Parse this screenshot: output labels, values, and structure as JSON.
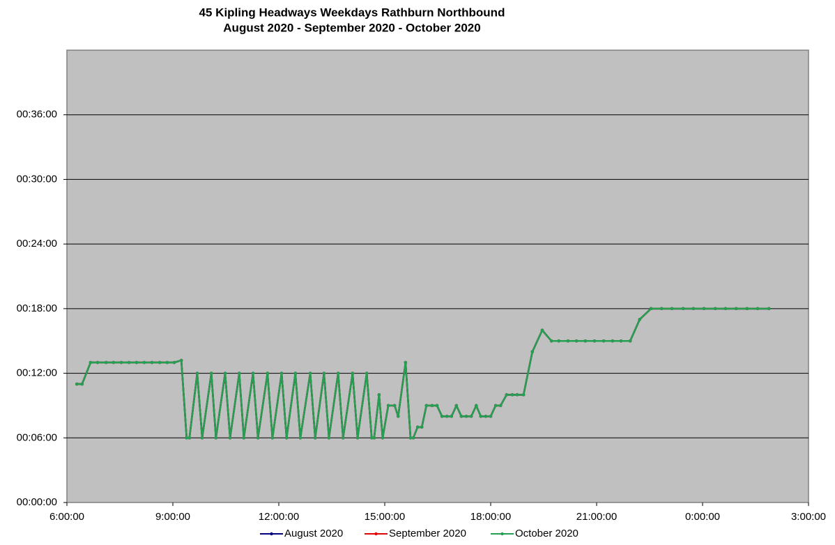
{
  "chart_data": {
    "type": "line",
    "title": "45 Kipling Headways Weekdays Rathburn Northbound",
    "subtitle": "August 2020 - September 2020 - October 2020",
    "x": [
      6.28,
      6.43,
      6.67,
      6.87,
      7.11,
      7.32,
      7.54,
      7.76,
      7.97,
      8.19,
      8.41,
      8.63,
      8.84,
      9.04,
      9.24,
      9.39,
      9.47,
      9.69,
      9.83,
      10.09,
      10.22,
      10.48,
      10.62,
      10.88,
      11.01,
      11.27,
      11.41,
      11.68,
      11.82,
      12.08,
      12.22,
      12.47,
      12.61,
      12.89,
      13.03,
      13.28,
      13.42,
      13.68,
      13.82,
      14.09,
      14.23,
      14.49,
      14.63,
      14.7,
      14.84,
      14.94,
      15.1,
      15.28,
      15.38,
      15.59,
      15.73,
      15.81,
      15.93,
      16.05,
      16.18,
      16.34,
      16.48,
      16.62,
      16.76,
      16.89,
      17.03,
      17.17,
      17.31,
      17.45,
      17.59,
      17.72,
      17.86,
      18.0,
      18.14,
      18.28,
      18.45,
      18.61,
      18.75,
      18.93,
      19.18,
      19.46,
      19.72,
      19.93,
      20.19,
      20.43,
      20.68,
      20.94,
      21.2,
      21.45,
      21.69,
      21.95,
      22.22,
      22.54,
      22.84,
      23.13,
      23.45,
      23.74,
      24.04,
      24.36,
      24.65,
      24.95,
      25.26,
      25.56,
      25.88
    ],
    "series": [
      {
        "name": "August 2020",
        "color": "#000080",
        "values": [
          11,
          11,
          13,
          13,
          13,
          13,
          13,
          13,
          13,
          13,
          13,
          13,
          13,
          13,
          13.2,
          6,
          6,
          12,
          6,
          12,
          6,
          12,
          6,
          12,
          6,
          12,
          6,
          12,
          6,
          12,
          6,
          12,
          6,
          12,
          6,
          12,
          6,
          12,
          6,
          12,
          6,
          12,
          6,
          6,
          10,
          6,
          9,
          9,
          8,
          13,
          6,
          6,
          7,
          7,
          9,
          9,
          9,
          8,
          8,
          8,
          9,
          8,
          8,
          8,
          9,
          8,
          8,
          8,
          9,
          9,
          10,
          10,
          10,
          10,
          14,
          16,
          15,
          15,
          15,
          15,
          15,
          15,
          15,
          15,
          15,
          15,
          17,
          18,
          18,
          18,
          18,
          18,
          18,
          18,
          18,
          18,
          18,
          18,
          18
        ]
      },
      {
        "name": "September 2020",
        "color": "#e00000",
        "values": [
          11,
          11,
          13,
          13,
          13,
          13,
          13,
          13,
          13,
          13,
          13,
          13,
          13,
          13,
          13.2,
          6,
          6,
          12,
          6,
          12,
          6,
          12,
          6,
          12,
          6,
          12,
          6,
          12,
          6,
          12,
          6,
          12,
          6,
          12,
          6,
          12,
          6,
          12,
          6,
          12,
          6,
          12,
          6,
          6,
          10,
          6,
          9,
          9,
          8,
          13,
          6,
          6,
          7,
          7,
          9,
          9,
          9,
          8,
          8,
          8,
          9,
          8,
          8,
          8,
          9,
          8,
          8,
          8,
          9,
          9,
          10,
          10,
          10,
          10,
          14,
          16,
          15,
          15,
          15,
          15,
          15,
          15,
          15,
          15,
          15,
          15,
          17,
          18,
          18,
          18,
          18,
          18,
          18,
          18,
          18,
          18,
          18,
          18,
          18
        ]
      },
      {
        "name": "October 2020",
        "color": "#23a052",
        "values": [
          11,
          11,
          13,
          13,
          13,
          13,
          13,
          13,
          13,
          13,
          13,
          13,
          13,
          13,
          13.2,
          6,
          6,
          12,
          6,
          12,
          6,
          12,
          6,
          12,
          6,
          12,
          6,
          12,
          6,
          12,
          6,
          12,
          6,
          12,
          6,
          12,
          6,
          12,
          6,
          12,
          6,
          12,
          6,
          6,
          10,
          6,
          9,
          9,
          8,
          13,
          6,
          6,
          7,
          7,
          9,
          9,
          9,
          8,
          8,
          8,
          9,
          8,
          8,
          8,
          9,
          8,
          8,
          8,
          9,
          9,
          10,
          10,
          10,
          10,
          14,
          16,
          15,
          15,
          15,
          15,
          15,
          15,
          15,
          15,
          15,
          15,
          17,
          18,
          18,
          18,
          18,
          18,
          18,
          18,
          18,
          18,
          18,
          18,
          18
        ]
      }
    ],
    "xlim": [
      6,
      27
    ],
    "xticks": [
      {
        "value": 6,
        "label": "6:00:00"
      },
      {
        "value": 9,
        "label": "9:00:00"
      },
      {
        "value": 12,
        "label": "12:00:00"
      },
      {
        "value": 15,
        "label": "15:00:00"
      },
      {
        "value": 18,
        "label": "18:00:00"
      },
      {
        "value": 21,
        "label": "21:00:00"
      },
      {
        "value": 24,
        "label": "0:00:00"
      },
      {
        "value": 27,
        "label": "3:00:00"
      }
    ],
    "ylim": [
      0,
      42
    ],
    "yticks": [
      {
        "value": 0,
        "label": "00:00:00"
      },
      {
        "value": 6,
        "label": "00:06:00"
      },
      {
        "value": 12,
        "label": "00:12:00"
      },
      {
        "value": 18,
        "label": "00:18:00"
      },
      {
        "value": 24,
        "label": "00:24:00"
      },
      {
        "value": 30,
        "label": "00:30:00"
      },
      {
        "value": 36,
        "label": "00:36:00"
      }
    ],
    "grid": true,
    "legend": "bottom",
    "plot_background": "#c0c0c0"
  }
}
